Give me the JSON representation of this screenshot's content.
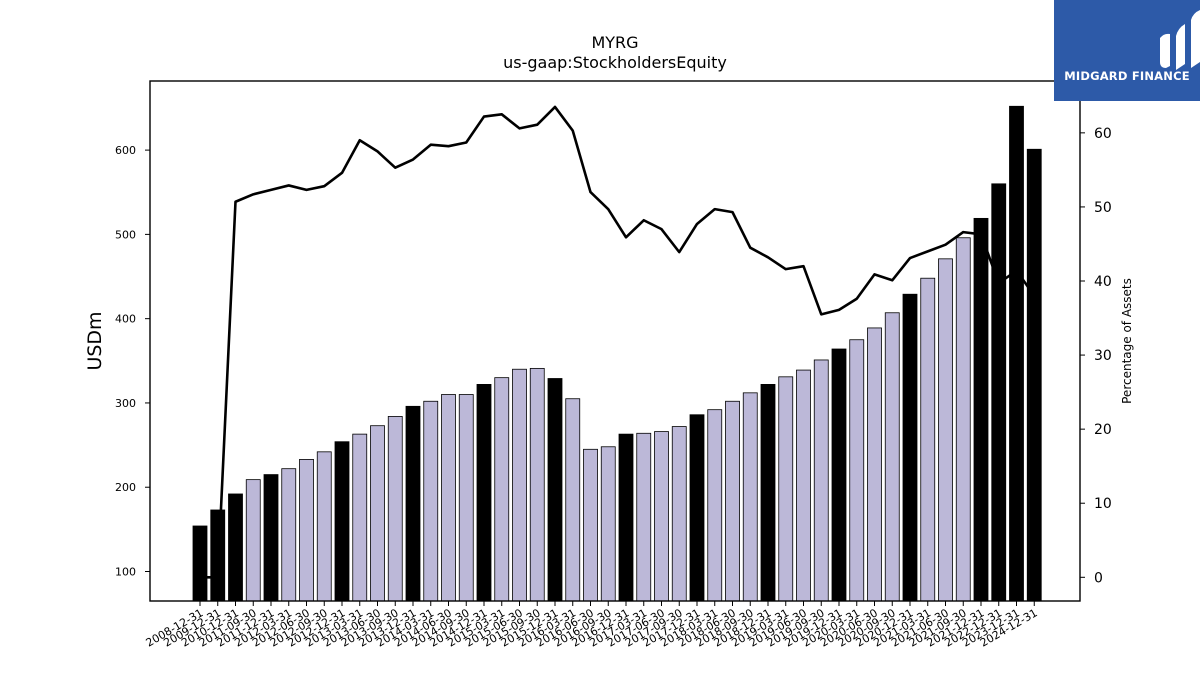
{
  "brand": {
    "name": "MIDGARD FINANCE",
    "color": "#2d5aa8"
  },
  "chart_data": {
    "type": "bar",
    "title": "MYRG",
    "subtitle": "us-gaap:StockholdersEquity",
    "ylabel": "USDm",
    "y2label": "Percentage of Assets",
    "ylim": [
      65,
      682
    ],
    "y2lim": [
      -3.2,
      67
    ],
    "yticks": [
      100,
      200,
      300,
      400,
      500,
      600
    ],
    "y2ticks": [
      0,
      10,
      20,
      30,
      40,
      50,
      60
    ],
    "grid": false,
    "colors": {
      "q4_bar": "#000000",
      "quarter_bar": "#bcb8d8",
      "line": "#000000"
    },
    "categories": [
      "2008-12-31",
      "2009-12-31",
      "2010-12-31",
      "2011-09-30",
      "2011-12-31",
      "2012-03-31",
      "2012-06-30",
      "2012-09-30",
      "2012-12-31",
      "2013-03-31",
      "2013-06-30",
      "2013-09-30",
      "2013-12-31",
      "2014-03-31",
      "2014-06-30",
      "2014-09-30",
      "2014-12-31",
      "2015-03-31",
      "2015-06-30",
      "2015-09-30",
      "2015-12-31",
      "2016-03-31",
      "2016-06-30",
      "2016-09-30",
      "2016-12-31",
      "2017-03-31",
      "2017-06-30",
      "2017-09-30",
      "2017-12-31",
      "2018-03-31",
      "2018-06-30",
      "2018-09-30",
      "2018-12-31",
      "2019-03-31",
      "2019-06-30",
      "2019-09-30",
      "2019-12-31",
      "2020-03-31",
      "2020-06-30",
      "2020-09-30",
      "2020-12-31",
      "2021-03-31",
      "2021-06-30",
      "2021-09-30",
      "2021-12-31",
      "2022-12-31",
      "2023-12-31",
      "2024-12-31"
    ],
    "series": [
      {
        "type": "bar",
        "axis": "left",
        "values": [
          154,
          173,
          192,
          209,
          215,
          222,
          233,
          242,
          254,
          263,
          273,
          284,
          296,
          302,
          310,
          310,
          322,
          330,
          340,
          341,
          329,
          305,
          245,
          248,
          263,
          264,
          266,
          272,
          286,
          292,
          302,
          312,
          322,
          331,
          339,
          351,
          364,
          375,
          389,
          407,
          429,
          448,
          471,
          496,
          519,
          560,
          652,
          601
        ],
        "q4": [
          true,
          true,
          true,
          false,
          true,
          false,
          false,
          false,
          true,
          false,
          false,
          false,
          true,
          false,
          false,
          false,
          true,
          false,
          false,
          false,
          true,
          false,
          false,
          false,
          true,
          false,
          false,
          false,
          true,
          false,
          false,
          false,
          true,
          false,
          false,
          false,
          true,
          false,
          false,
          false,
          true,
          false,
          false,
          false,
          true,
          true,
          true,
          true
        ]
      },
      {
        "type": "line",
        "axis": "right",
        "values": [
          0.0,
          0.0,
          50.7,
          51.7,
          52.3,
          52.9,
          52.3,
          52.8,
          54.6,
          59.0,
          57.5,
          55.3,
          56.4,
          58.4,
          58.2,
          58.7,
          62.2,
          62.5,
          60.6,
          61.1,
          63.5,
          60.3,
          52.0,
          49.7,
          45.9,
          48.2,
          47.0,
          43.9,
          47.7,
          49.7,
          49.3,
          44.5,
          43.2,
          41.6,
          42.0,
          35.5,
          36.1,
          37.6,
          40.9,
          40.1,
          43.1,
          44.0,
          44.9,
          46.6,
          46.3,
          39.7,
          41.4,
          38.0
        ]
      }
    ]
  }
}
